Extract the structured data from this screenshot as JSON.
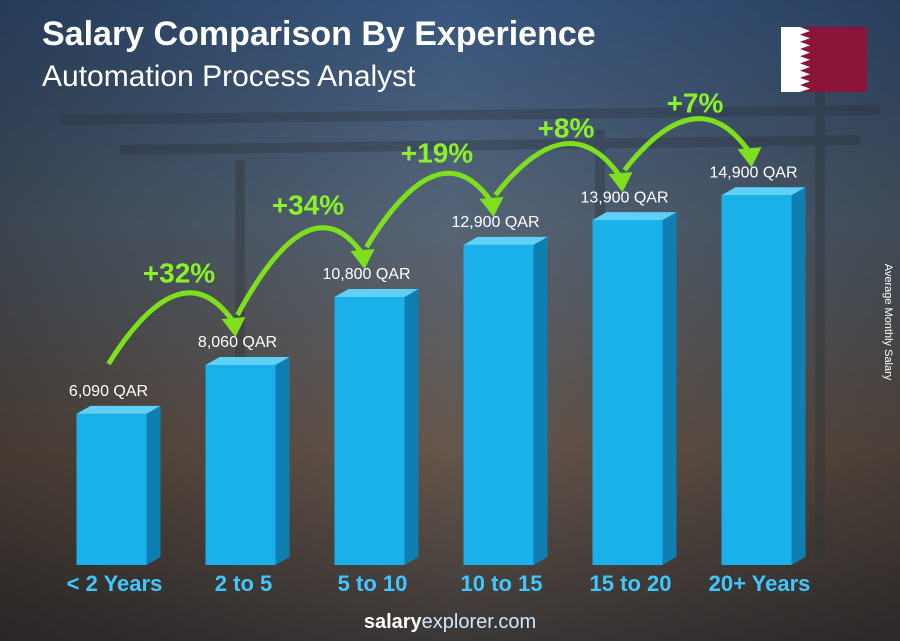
{
  "chart_data": {
    "type": "bar",
    "title": "Salary Comparison By Experience",
    "subtitle": "Automation Process Analyst",
    "y_axis_label": "Average Monthly Salary",
    "categories": [
      "< 2 Years",
      "2 to 5",
      "5 to 10",
      "10 to 15",
      "15 to 20",
      "20+ Years"
    ],
    "values": [
      6090,
      8060,
      10800,
      12900,
      13900,
      14900
    ],
    "value_labels": [
      "6,090 QAR",
      "8,060 QAR",
      "10,800 QAR",
      "12,900 QAR",
      "13,900 QAR",
      "14,900 QAR"
    ],
    "changes": [
      "+32%",
      "+34%",
      "+19%",
      "+8%",
      "+7%"
    ],
    "color": "#1ab0ea",
    "ylim": [
      0,
      16000
    ],
    "footer": [
      "salary",
      "explorer.com"
    ]
  }
}
